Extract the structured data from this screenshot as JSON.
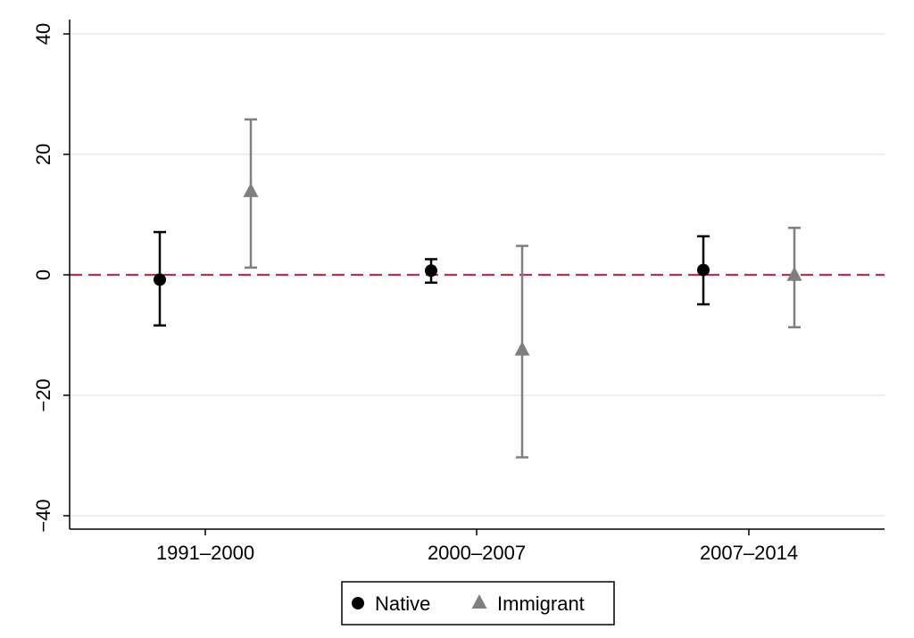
{
  "chart_data": {
    "type": "scatter",
    "title": "",
    "xlabel": "",
    "ylabel": "",
    "ylim": [
      -42,
      42
    ],
    "yticks": [
      -40,
      -20,
      0,
      20,
      40
    ],
    "yticks_labels": [
      "−40",
      "−20",
      "0",
      "20",
      "40"
    ],
    "grid": true,
    "reference_line": {
      "y": 0,
      "style": "dashed",
      "color": "#b5334d"
    },
    "categories": [
      "1991–2000",
      "2000–2007",
      "2007–2014"
    ],
    "legend": {
      "placement": "bottom-center",
      "frame": true
    },
    "series": [
      {
        "name": "Native",
        "marker": "circle",
        "color": "#000000",
        "points": [
          {
            "category": "1991–2000",
            "estimate": -0.8,
            "ci_low": -8.4,
            "ci_high": 7.1
          },
          {
            "category": "2000–2007",
            "estimate": 0.7,
            "ci_low": -1.3,
            "ci_high": 2.6
          },
          {
            "category": "2007–2014",
            "estimate": 0.8,
            "ci_low": -4.9,
            "ci_high": 6.4
          }
        ]
      },
      {
        "name": "Immigrant",
        "marker": "triangle",
        "color": "#7f7f7f",
        "points": [
          {
            "category": "1991–2000",
            "estimate": 13.8,
            "ci_low": 1.2,
            "ci_high": 25.8
          },
          {
            "category": "2000–2007",
            "estimate": -12.5,
            "ci_low": -30.3,
            "ci_high": 4.8
          },
          {
            "category": "2007–2014",
            "estimate": -0.1,
            "ci_low": -8.7,
            "ci_high": 7.8
          }
        ]
      }
    ]
  }
}
